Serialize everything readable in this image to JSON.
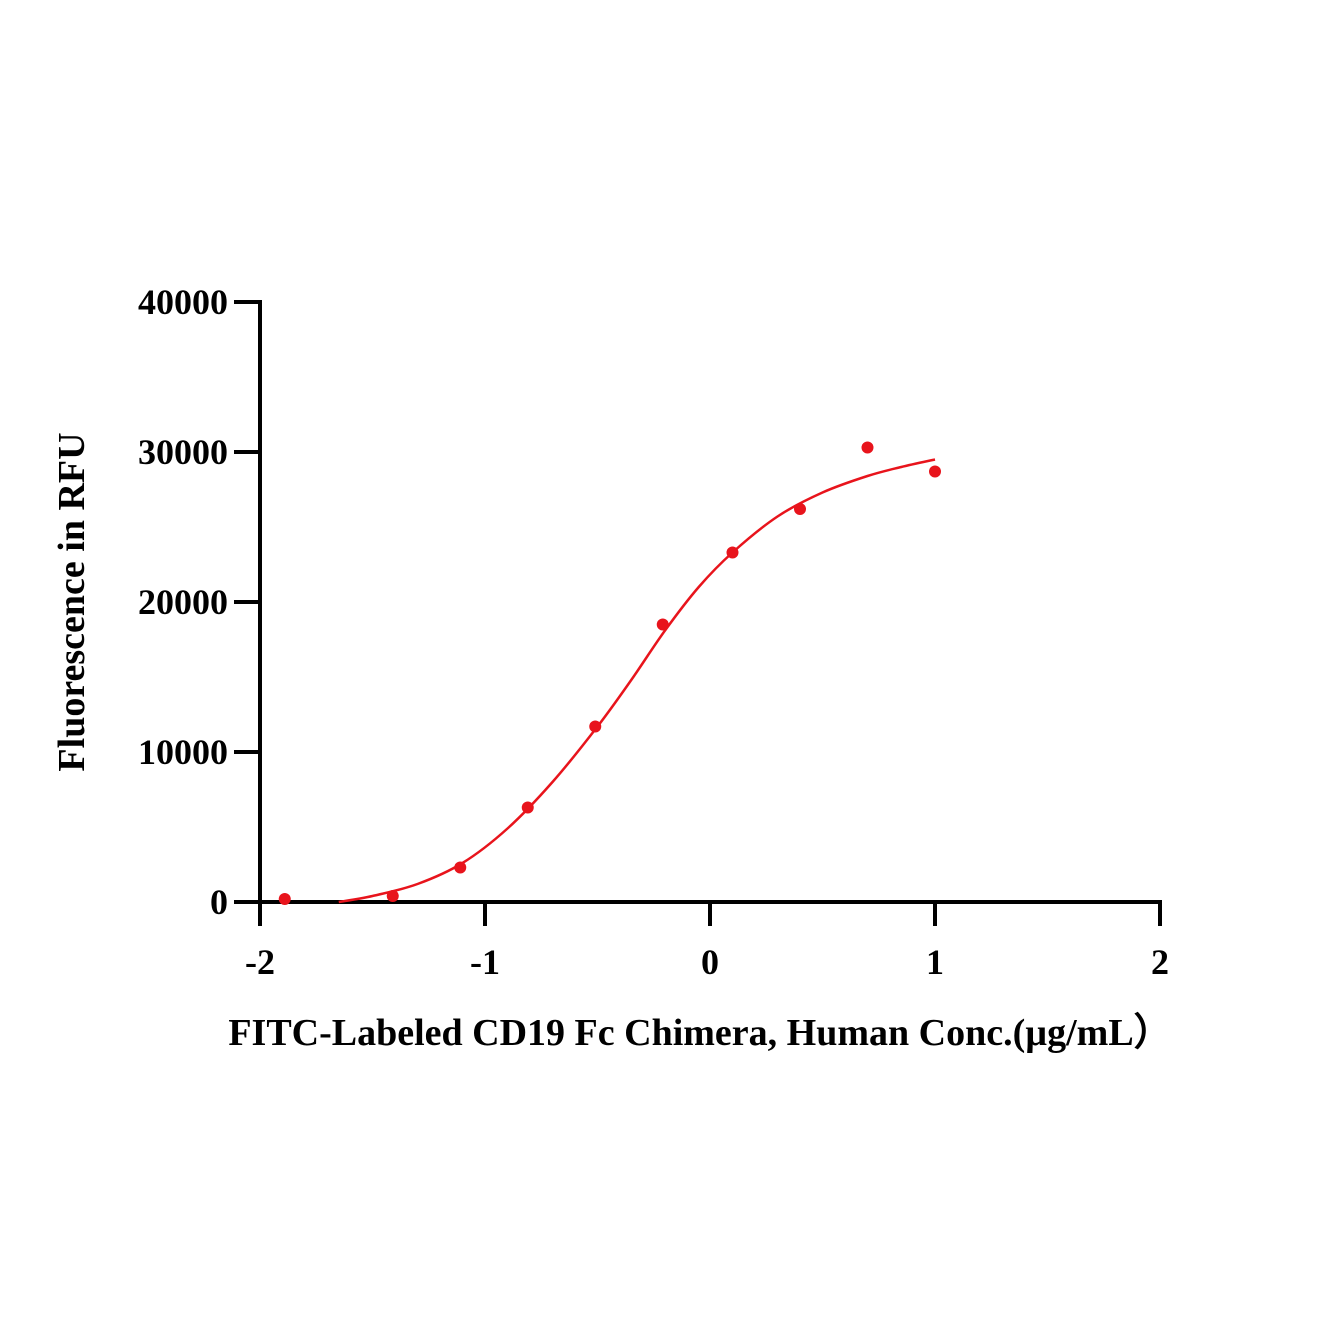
{
  "chart_data": {
    "type": "scatter",
    "title": "",
    "xlabel": "FITC-Labeled CD19 Fc Chimera, Human Conc.(µg/mL）",
    "ylabel": "Fluorescence in RFU",
    "xlim": [
      -2,
      2
    ],
    "ylim": [
      0,
      40000
    ],
    "x_ticks": [
      -2,
      -1,
      0,
      1,
      2
    ],
    "y_ticks": [
      0,
      10000,
      20000,
      30000,
      40000
    ],
    "grid": false,
    "legend": "none",
    "series": [
      {
        "kind": "points",
        "color": "#e8141c",
        "x": [
          -1.89,
          -1.41,
          -1.11,
          -0.81,
          -0.51,
          -0.21,
          0.1,
          0.4,
          0.7,
          1.0
        ],
        "y": [
          200,
          400,
          2300,
          6300,
          11700,
          18500,
          23300,
          26200,
          30300,
          28700
        ]
      },
      {
        "kind": "fit-curve",
        "color": "#e8141c",
        "x": [
          -1.65,
          -1.5,
          -1.3,
          -1.1,
          -0.9,
          -0.7,
          -0.5,
          -0.35,
          -0.2,
          -0.05,
          0.1,
          0.3,
          0.5,
          0.7,
          0.85,
          1.0
        ],
        "y": [
          0,
          400,
          1200,
          2600,
          4900,
          8000,
          11700,
          14800,
          18100,
          21000,
          23300,
          25700,
          27300,
          28400,
          29000,
          29500
        ]
      }
    ]
  }
}
